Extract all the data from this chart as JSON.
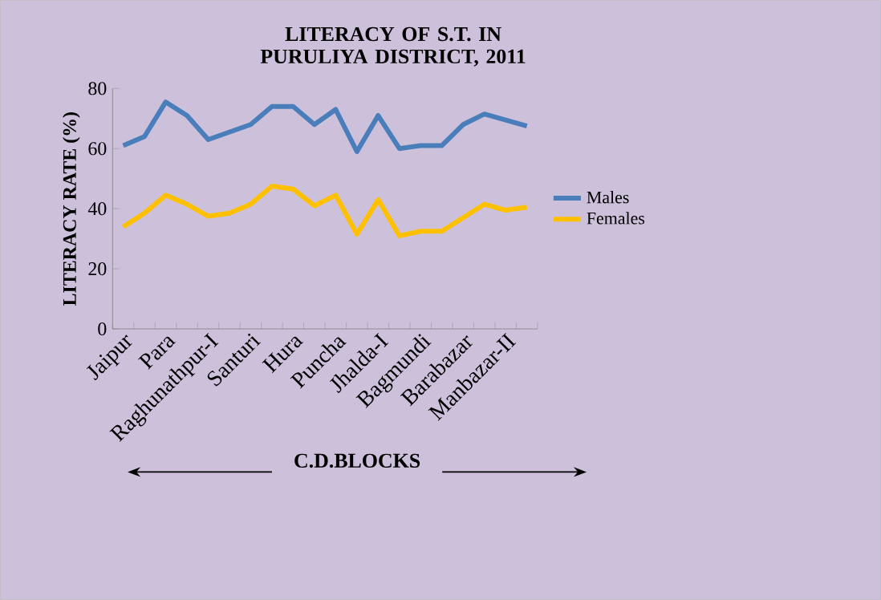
{
  "chart_data": {
    "type": "line",
    "title": "LITERACY OF S.T. IN PURULIYA DISTRICT, 2011",
    "xlabel": "C.D.BLOCKS",
    "ylabel": "LITERACY RATE (%)",
    "categories": [
      "Jaipur",
      null,
      "Para",
      null,
      "Raghunathpur-I",
      null,
      "Santuri",
      null,
      "Hura",
      null,
      "Puncha",
      null,
      "Jhalda-I",
      null,
      "Bagmundi",
      null,
      "Barabazar",
      null,
      "Manbazar-II",
      null
    ],
    "series": [
      {
        "name": "Males",
        "color": "#4a7ebb",
        "values": [
          61,
          64,
          75.5,
          71,
          63,
          65.5,
          68,
          74,
          74,
          68,
          73,
          59,
          71,
          60,
          61,
          61,
          68,
          71.5,
          69.5,
          67.5
        ]
      },
      {
        "name": "Females",
        "color": "#ffc000",
        "values": [
          34,
          38.5,
          44.5,
          41.5,
          37.5,
          38.5,
          41.5,
          47.5,
          46.5,
          41,
          44.5,
          31.5,
          43,
          31,
          32.5,
          32.5,
          37,
          41.5,
          39.5,
          40.5
        ]
      }
    ],
    "ylim": [
      0,
      80
    ],
    "yticks": [
      0,
      20,
      40,
      60,
      80
    ],
    "grid": false,
    "legend": "right",
    "marker": "none",
    "line_style": "solid"
  }
}
